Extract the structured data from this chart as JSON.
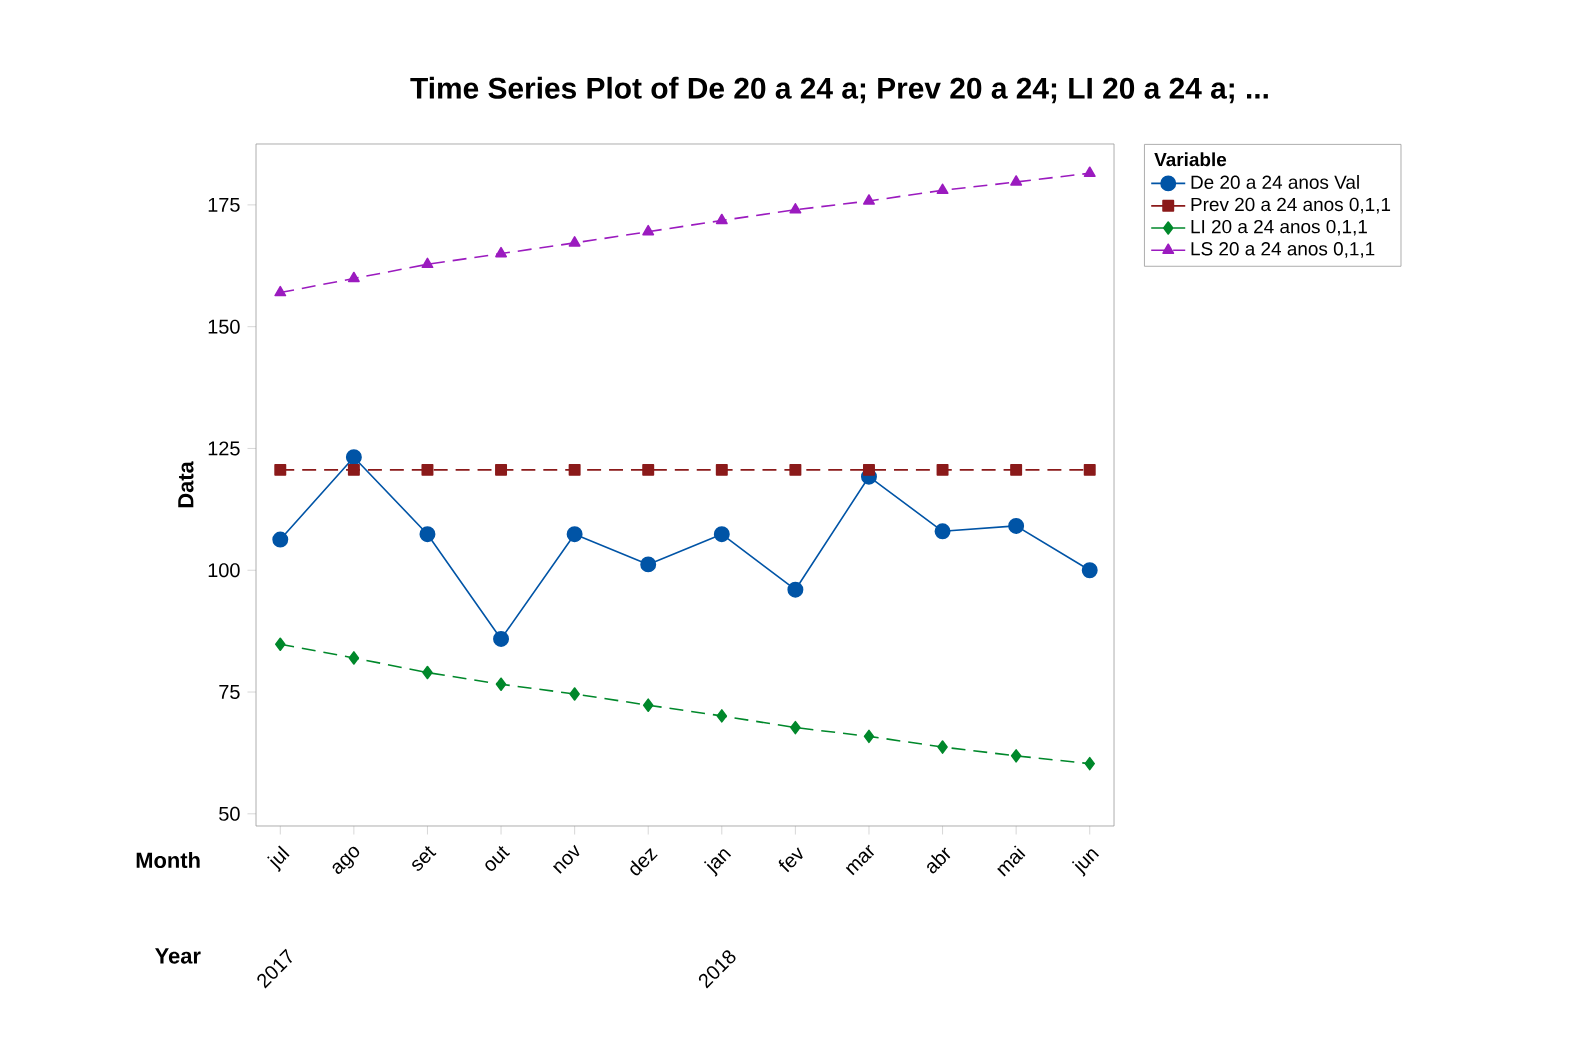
{
  "chart_data": {
    "type": "line",
    "title": "Time Series Plot of De 20 a 24 a; Prev 20 a 24; LI 20 a 24 a; ...",
    "ylabel": "Data",
    "legend_title": "Variable",
    "legend": "top right",
    "categories": [
      "jul",
      "ago",
      "set",
      "out",
      "nov",
      "dez",
      "jan",
      "fev",
      "mar",
      "abr",
      "mai",
      "jun"
    ],
    "ylim": [
      47.5,
      187.5
    ],
    "yticks": [
      50,
      75,
      100,
      125,
      150,
      175
    ],
    "grid": false,
    "annotations": [
      "Month",
      "Year",
      "2017",
      "2018"
    ],
    "series": [
      {
        "name": "De 20 a 24 anos Val",
        "color": "#0054a6",
        "marker": "circle",
        "line_style": "solid",
        "values": [
          106.3,
          123.2,
          107.4,
          85.9,
          107.4,
          101.2,
          107.4,
          96.0,
          119.2,
          108.0,
          109.1,
          100.0
        ]
      },
      {
        "name": "Prev 20 a 24 anos 0,1,1",
        "color": "#8b1a1a",
        "marker": "square",
        "line_style": "dashed",
        "values": [
          120.6,
          120.6,
          120.6,
          120.6,
          120.6,
          120.6,
          120.6,
          120.6,
          120.6,
          120.6,
          120.6,
          120.6
        ]
      },
      {
        "name": "LI 20 a 24 anos 0,1,1",
        "color": "#00882b",
        "marker": "diamond",
        "line_style": "dashed",
        "values": [
          84.8,
          82.0,
          79.0,
          76.6,
          74.6,
          72.3,
          70.1,
          67.7,
          65.9,
          63.7,
          61.9,
          60.3
        ]
      },
      {
        "name": "LS 20 a 24 anos 0,1,1",
        "color": "#9b1bbf",
        "marker": "triangle",
        "line_style": "dashed",
        "values": [
          157.0,
          159.9,
          162.8,
          165.0,
          167.2,
          169.5,
          171.8,
          174.0,
          175.8,
          178.0,
          179.7,
          181.5
        ]
      }
    ]
  }
}
